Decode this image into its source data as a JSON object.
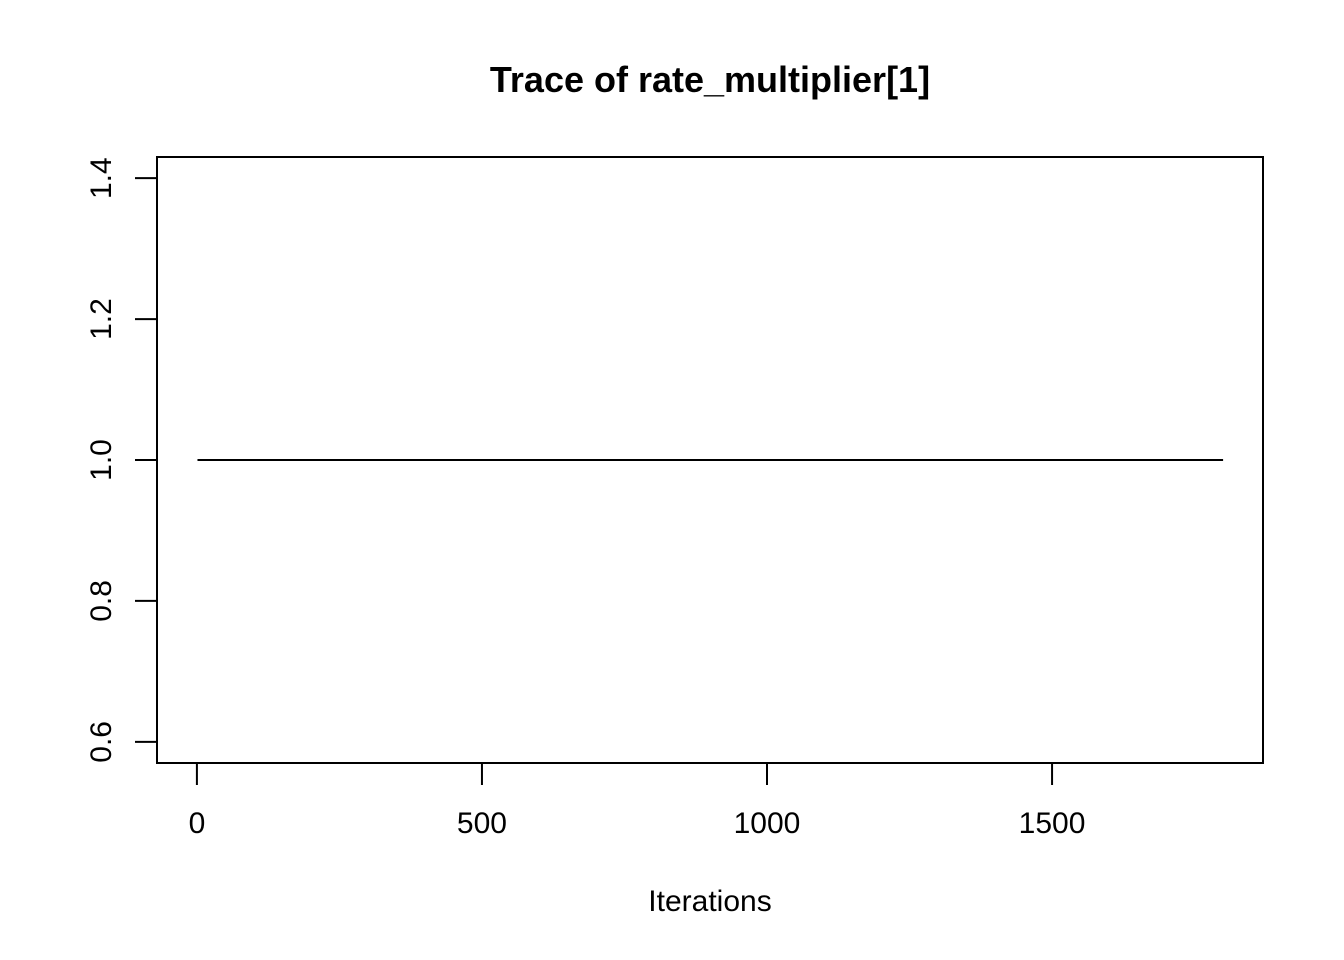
{
  "chart_data": {
    "type": "line",
    "title": "Trace of rate_multiplier[1]",
    "xlabel": "Iterations",
    "ylabel": "",
    "xlim": [
      -70,
      1870
    ],
    "ylim": [
      0.57,
      1.43
    ],
    "x_ticks": [
      0,
      500,
      1000,
      1500
    ],
    "x_tick_labels": [
      "0",
      "500",
      "1000",
      "1500"
    ],
    "y_ticks": [
      0.6,
      0.8,
      1.0,
      1.2,
      1.4
    ],
    "y_tick_labels": [
      "0.6",
      "0.8",
      "1.0",
      "1.2",
      "1.4"
    ],
    "grid": false,
    "series": [
      {
        "x": [
          1,
          1800
        ],
        "y": [
          1.0,
          1.0
        ],
        "color": "#000000"
      }
    ]
  }
}
